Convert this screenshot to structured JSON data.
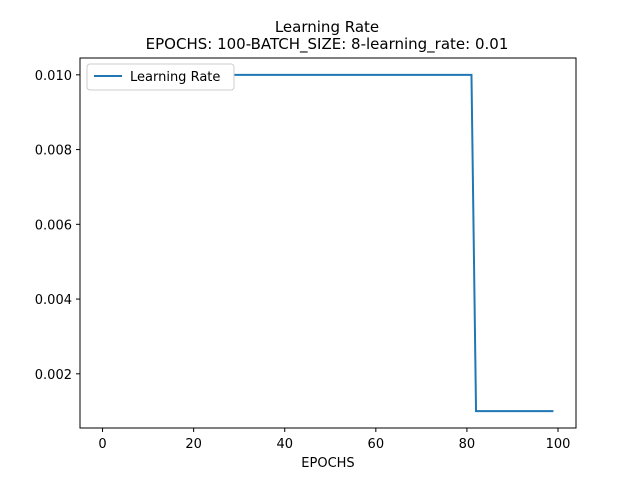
{
  "chart_data": {
    "type": "line",
    "title": "Learning Rate",
    "subtitle": "EPOCHS: 100-BATCH_SIZE: 8-learning_rate: 0.01",
    "xlabel": "EPOCHS",
    "ylabel": "",
    "xlim": [
      -4.95,
      103.95
    ],
    "ylim": [
      0.00055,
      0.01045
    ],
    "xticks": [
      0,
      20,
      40,
      60,
      80,
      100
    ],
    "yticks": [
      0.002,
      0.004,
      0.006,
      0.008,
      0.01
    ],
    "ytick_labels": [
      "0.002",
      "0.004",
      "0.006",
      "0.008",
      "0.010"
    ],
    "grid": false,
    "legend": "upper left",
    "series": [
      {
        "name": "Learning Rate",
        "color": "#1f77b4",
        "x": [
          0,
          81,
          82,
          99
        ],
        "y": [
          0.01,
          0.01,
          0.001,
          0.001
        ]
      }
    ]
  }
}
